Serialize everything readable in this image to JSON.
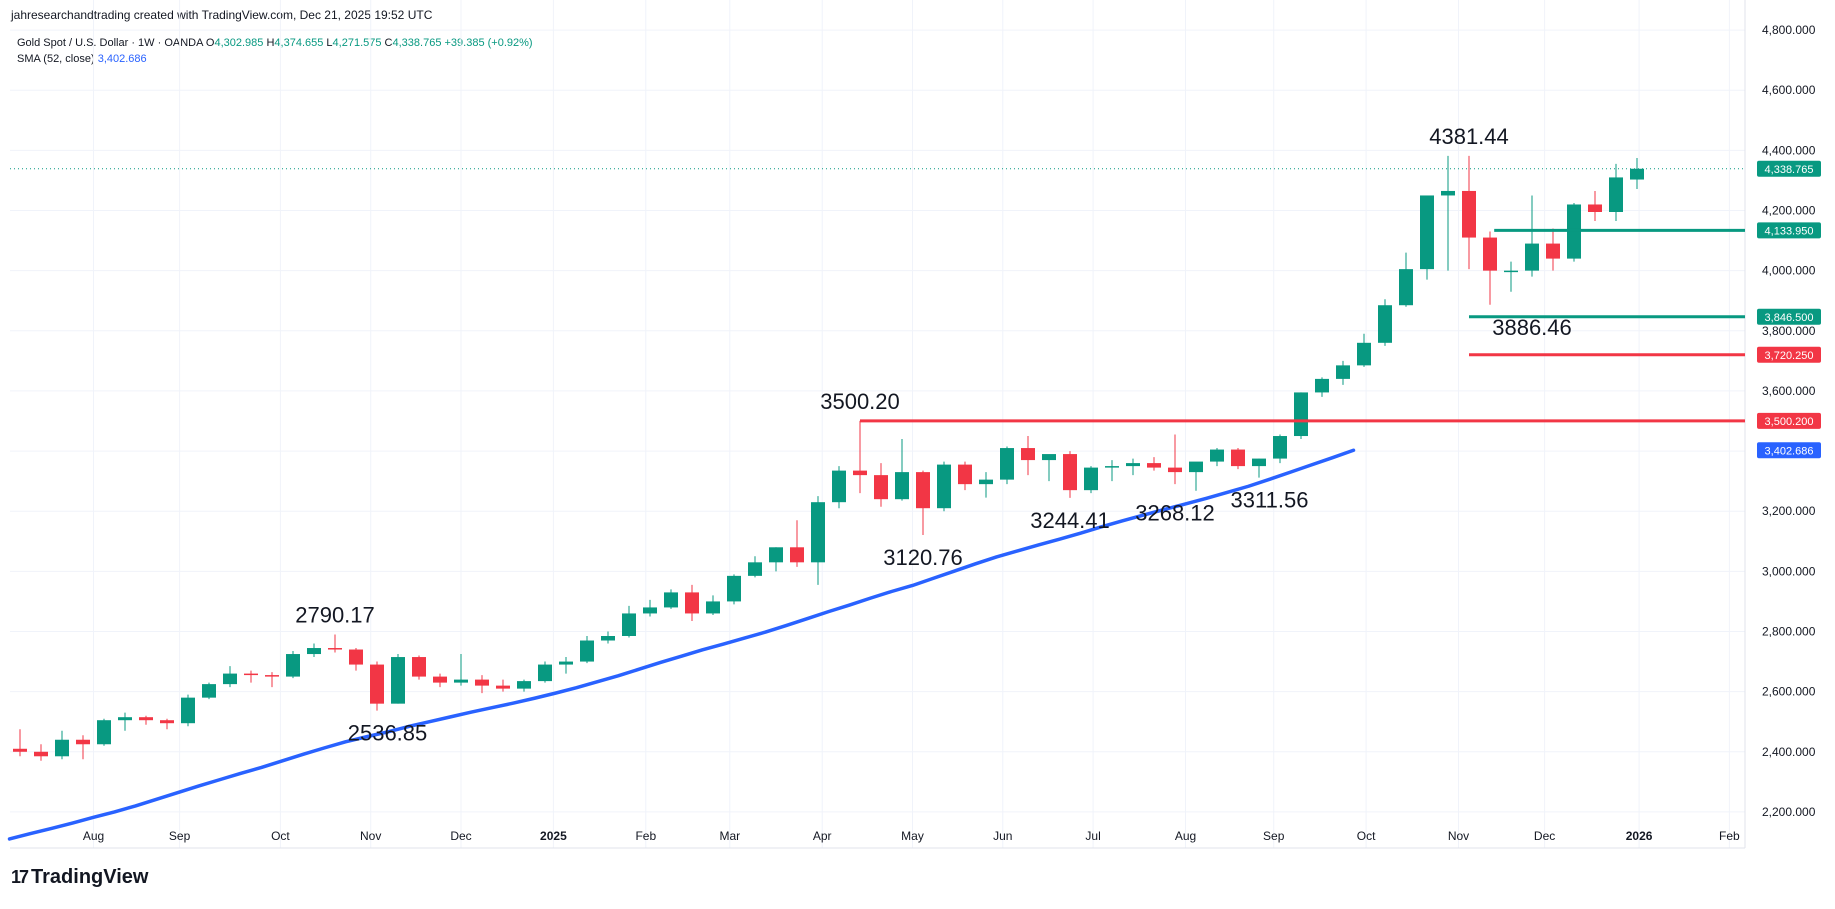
{
  "header": {
    "credit": "jahresearchandtrading created with TradingView.com, Dec 21, 2025 19:52 UTC"
  },
  "legend": {
    "symbol": "Gold Spot / U.S. Dollar · 1W · OANDA",
    "o_label": "O",
    "o_value": "4,302.985",
    "h_label": "H",
    "h_value": "4,374.655",
    "l_label": "L",
    "l_value": "4,271.575",
    "c_label": "C",
    "c_value": "4,338.765",
    "change": "+39.385 (+0.92%)",
    "sma_label": "SMA (52, close)",
    "sma_value": "3,402.686"
  },
  "brand": {
    "logo": "17",
    "name": "TradingView"
  },
  "colors": {
    "up": "#089981",
    "down": "#f23645",
    "sma": "#2962ff",
    "grid": "#f0f3fa"
  },
  "chart_data": {
    "type": "candlestick",
    "interval": "1W",
    "ylim": [
      2080,
      4900
    ],
    "y_ticks": [
      2200,
      2400,
      2600,
      2800,
      3000,
      3200,
      3400,
      3600,
      3800,
      4000,
      4200,
      4400,
      4600,
      4800
    ],
    "y_tick_labels": [
      "2,200.000",
      "2,400.000",
      "2,600.000",
      "2,800.000",
      "3,000.000",
      "3,200.000",
      "3,400.000",
      "3,600.000",
      "3,800.000",
      "4,000.000",
      "4,200.000",
      "4,400.000",
      "4,600.000",
      "4,800.000"
    ],
    "x_ticks": [
      {
        "label": "Aug",
        "week": 3.5
      },
      {
        "label": "Sep",
        "week": 7.6
      },
      {
        "label": "Oct",
        "week": 12.4
      },
      {
        "label": "Nov",
        "week": 16.7
      },
      {
        "label": "Dec",
        "week": 21.0
      },
      {
        "label": "2025",
        "week": 25.4
      },
      {
        "label": "Feb",
        "week": 29.8
      },
      {
        "label": "Mar",
        "week": 33.8
      },
      {
        "label": "Apr",
        "week": 38.2
      },
      {
        "label": "May",
        "week": 42.5
      },
      {
        "label": "Jun",
        "week": 46.8
      },
      {
        "label": "Jul",
        "week": 51.1
      },
      {
        "label": "Aug",
        "week": 55.5
      },
      {
        "label": "Sep",
        "week": 59.7
      },
      {
        "label": "Oct",
        "week": 64.1
      },
      {
        "label": "Nov",
        "week": 68.5
      },
      {
        "label": "Dec",
        "week": 72.6
      },
      {
        "label": "2026",
        "week": 77.1
      },
      {
        "label": "Feb",
        "week": 81.4
      }
    ],
    "candles": [
      [
        2410,
        2475,
        2385,
        2400
      ],
      [
        2400,
        2425,
        2370,
        2385
      ],
      [
        2385,
        2470,
        2375,
        2440
      ],
      [
        2440,
        2455,
        2375,
        2425
      ],
      [
        2425,
        2510,
        2420,
        2505
      ],
      [
        2505,
        2530,
        2470,
        2515
      ],
      [
        2515,
        2520,
        2490,
        2505
      ],
      [
        2505,
        2510,
        2475,
        2495
      ],
      [
        2495,
        2590,
        2485,
        2580
      ],
      [
        2580,
        2630,
        2575,
        2625
      ],
      [
        2625,
        2685,
        2615,
        2660
      ],
      [
        2660,
        2670,
        2630,
        2655
      ],
      [
        2655,
        2665,
        2615,
        2650
      ],
      [
        2650,
        2735,
        2645,
        2725
      ],
      [
        2725,
        2760,
        2715,
        2745
      ],
      [
        2745,
        2790.17,
        2730,
        2740
      ],
      [
        2740,
        2745,
        2670,
        2690
      ],
      [
        2690,
        2700,
        2536.85,
        2560
      ],
      [
        2560,
        2725,
        2560,
        2715
      ],
      [
        2715,
        2720,
        2640,
        2650
      ],
      [
        2650,
        2660,
        2615,
        2630
      ],
      [
        2630,
        2725,
        2620,
        2640
      ],
      [
        2640,
        2655,
        2595,
        2620
      ],
      [
        2620,
        2640,
        2600,
        2610
      ],
      [
        2610,
        2640,
        2600,
        2635
      ],
      [
        2635,
        2700,
        2630,
        2690
      ],
      [
        2690,
        2715,
        2660,
        2700
      ],
      [
        2700,
        2785,
        2695,
        2770
      ],
      [
        2770,
        2800,
        2760,
        2785
      ],
      [
        2785,
        2885,
        2780,
        2860
      ],
      [
        2860,
        2905,
        2850,
        2880
      ],
      [
        2880,
        2940,
        2875,
        2930
      ],
      [
        2930,
        2955,
        2835,
        2860
      ],
      [
        2860,
        2920,
        2855,
        2900
      ],
      [
        2900,
        2990,
        2890,
        2985
      ],
      [
        2985,
        3050,
        2980,
        3030
      ],
      [
        3030,
        3080,
        3000,
        3080
      ],
      [
        3080,
        3170,
        3015,
        3030
      ],
      [
        3030,
        3250,
        2955,
        3230
      ],
      [
        3230,
        3350,
        3210,
        3335
      ],
      [
        3335,
        3500.2,
        3260,
        3320
      ],
      [
        3320,
        3360,
        3215,
        3240
      ],
      [
        3240,
        3440,
        3235,
        3330
      ],
      [
        3330,
        3335,
        3120.76,
        3210
      ],
      [
        3210,
        3365,
        3200,
        3355
      ],
      [
        3355,
        3365,
        3270,
        3290
      ],
      [
        3290,
        3330,
        3245,
        3305
      ],
      [
        3305,
        3415,
        3290,
        3410
      ],
      [
        3410,
        3450,
        3320,
        3370
      ],
      [
        3370,
        3380,
        3300,
        3390
      ],
      [
        3390,
        3400,
        3244.41,
        3270
      ],
      [
        3270,
        3350,
        3260,
        3345
      ],
      [
        3345,
        3370,
        3300,
        3350
      ],
      [
        3350,
        3375,
        3320,
        3360
      ],
      [
        3360,
        3380,
        3335,
        3345
      ],
      [
        3345,
        3455,
        3290,
        3330
      ],
      [
        3330,
        3350,
        3268.12,
        3365
      ],
      [
        3365,
        3410,
        3350,
        3405
      ],
      [
        3405,
        3410,
        3340,
        3350
      ],
      [
        3350,
        3375,
        3311.56,
        3375
      ],
      [
        3375,
        3455,
        3360,
        3450
      ],
      [
        3450,
        3595,
        3440,
        3595
      ],
      [
        3595,
        3645,
        3580,
        3640
      ],
      [
        3640,
        3700,
        3620,
        3685
      ],
      [
        3685,
        3790,
        3680,
        3760
      ],
      [
        3760,
        3905,
        3750,
        3885
      ],
      [
        3885,
        4060,
        3880,
        4005
      ],
      [
        4005,
        4250,
        3970,
        4250
      ],
      [
        4250,
        4381.44,
        4000,
        4265
      ],
      [
        4265,
        4381.44,
        4005,
        4110
      ],
      [
        4110,
        4130,
        3886.46,
        4000
      ],
      [
        4000,
        4030,
        3930,
        4000
      ],
      [
        4000,
        4250,
        3980,
        4090
      ],
      [
        4090,
        4140,
        4000,
        4040
      ],
      [
        4040,
        4225,
        4030,
        4220
      ],
      [
        4220,
        4265,
        4165,
        4195
      ],
      [
        4195,
        4355,
        4165,
        4310
      ],
      [
        4302.985,
        4374.655,
        4271.575,
        4338.765
      ]
    ],
    "sma": [
      2110,
      2128,
      2145,
      2163,
      2182,
      2200,
      2220,
      2242,
      2264,
      2286,
      2307,
      2328,
      2348,
      2370,
      2392,
      2413,
      2433,
      2450,
      2466,
      2484,
      2500,
      2516,
      2532,
      2547,
      2562,
      2578,
      2595,
      2613,
      2633,
      2653,
      2675,
      2697,
      2718,
      2739,
      2758,
      2778,
      2798,
      2820,
      2843,
      2866,
      2888,
      2911,
      2933,
      2953,
      2977,
      3001,
      3025,
      3048,
      3068,
      3088,
      3107,
      3127,
      3148,
      3168,
      3187,
      3206,
      3224,
      3243,
      3263,
      3283,
      3306,
      3330,
      3354,
      3378,
      3402.686
    ],
    "horizontal_lines": [
      {
        "price": 3500.2,
        "label": "3,500.200",
        "color": "#f23645",
        "start_week": 40
      },
      {
        "price": 3720.25,
        "label": "3,720.250",
        "color": "#f23645",
        "start_week": 69
      },
      {
        "price": 3846.5,
        "label": "3,846.500",
        "color": "#089981",
        "start_week": 69
      },
      {
        "price": 4133.95,
        "label": "4,133.950",
        "color": "#089981",
        "start_week": 70.2
      }
    ],
    "price_tags": [
      {
        "price": 4338.765,
        "label": "4,338.765",
        "color": "#089981"
      },
      {
        "price": 3402.686,
        "label": "3,402.686",
        "color": "#2962ff"
      }
    ],
    "current_price": 4338.765,
    "annotations": [
      {
        "text": "2790.17",
        "week": 15,
        "price": 2790.17,
        "pos": "above"
      },
      {
        "text": "2536.85",
        "week": 17.5,
        "price": 2536.85,
        "pos": "below"
      },
      {
        "text": "3500.20",
        "week": 40,
        "price": 3500.2,
        "pos": "above"
      },
      {
        "text": "3120.76",
        "week": 43,
        "price": 3120.76,
        "pos": "below"
      },
      {
        "text": "3244.41",
        "week": 50,
        "price": 3244.41,
        "pos": "below"
      },
      {
        "text": "3268.12",
        "week": 55,
        "price": 3268.12,
        "pos": "below"
      },
      {
        "text": "3311.56",
        "week": 59.5,
        "price": 3311.56,
        "pos": "below"
      },
      {
        "text": "4381.44",
        "week": 69,
        "price": 4381.44,
        "pos": "above"
      },
      {
        "text": "3886.46",
        "week": 72,
        "price": 3886.46,
        "pos": "below"
      }
    ]
  }
}
